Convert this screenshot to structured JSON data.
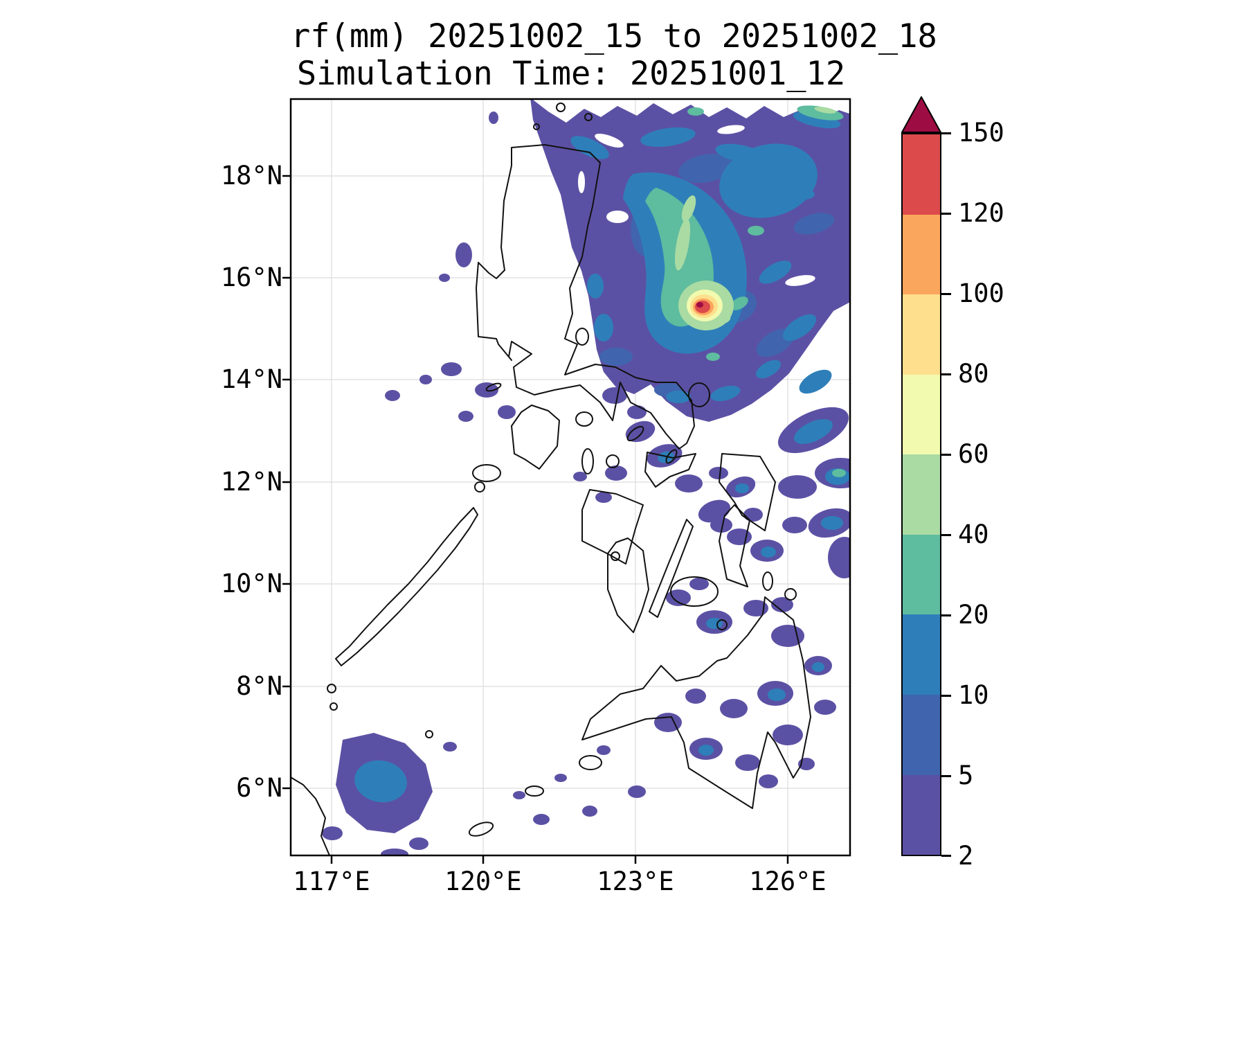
{
  "title": {
    "line1": "rf(mm) 20251002_15 to 20251002_18",
    "line2": "Simulation Time: 20251001_12"
  },
  "axes": {
    "x_ticks": [
      "117°E",
      "120°E",
      "123°E",
      "126°E"
    ],
    "y_ticks": [
      "18°N",
      "16°N",
      "14°N",
      "12°N",
      "10°N",
      "8°N",
      "6°N"
    ]
  },
  "colorbar": {
    "ticks": [
      "150",
      "120",
      "100",
      "80",
      "60",
      "40",
      "20",
      "10",
      "5",
      "2"
    ],
    "colors_top_to_bottom": [
      "#dc4a4c",
      "#fba65d",
      "#fedf8d",
      "#f2faaf",
      "#a9dba3",
      "#5ebc9f",
      "#2e7fb9",
      "#4065ae",
      "#5b51a4"
    ],
    "over_color": "#9d0c42"
  },
  "chart_data": {
    "type": "heatmap",
    "variable": "rf",
    "units": "mm",
    "title": "rf(mm) 20251002_15 to 20251002_18",
    "subtitle": "Simulation Time: 20251001_12",
    "valid_period": "20251002_15 to 20251002_18",
    "simulation_time": "20251001_12",
    "x_axis": {
      "tick_values_deg_e": [
        117,
        120,
        123,
        126
      ],
      "range_deg_e": [
        116.2,
        127.2
      ],
      "label_suffix": "°E"
    },
    "y_axis": {
      "tick_values_deg_n": [
        6,
        8,
        10,
        12,
        14,
        16,
        18
      ],
      "range_deg_n": [
        4.7,
        19.5
      ],
      "label_suffix": "°N"
    },
    "contour_levels_mm": [
      2,
      5,
      10,
      20,
      40,
      60,
      80,
      100,
      120,
      150
    ],
    "colors_low_to_high": [
      "#5b51a4",
      "#4065ae",
      "#2e7fb9",
      "#5ebc9f",
      "#a9dba3",
      "#f2faaf",
      "#fedf8d",
      "#fba65d",
      "#dc4a4c"
    ],
    "over_color": "#9d0c42",
    "grid": true,
    "legend_position": "right-colorbar",
    "region": "Philippines coastline outline",
    "features": [
      {
        "name": "typhoon-rain-core",
        "center_lon_e": 124.3,
        "center_lat_n": 15.4,
        "peak_mm": ">150",
        "note": "small red/maroon core ringed by orange, yellow, green"
      },
      {
        "name": "primary-rain-shield",
        "extent": "121.5-127.2 E, 13.5-19.5 N",
        "intensity_mm": "2-60",
        "note": "broad comma-shaped banded field of 2-40 mm with teal/green inner comma"
      },
      {
        "name": "east-visayas-bands",
        "extent": "124-127.2 E, 10.5-13.5 N",
        "intensity_mm": "2-20"
      },
      {
        "name": "scattered-cells-visayas-mindanao",
        "extent": "121-127 E, 5-13 N",
        "intensity_mm": "2-20"
      },
      {
        "name": "southwest-sulu-cluster",
        "center_lon_e": 117.8,
        "center_lat_n": 6.3,
        "intensity_mm": "2-20"
      },
      {
        "name": "west-luzon-small-cells",
        "extent": "118-121 E, 13.5-16.5 N",
        "intensity_mm": "2-5"
      }
    ]
  }
}
